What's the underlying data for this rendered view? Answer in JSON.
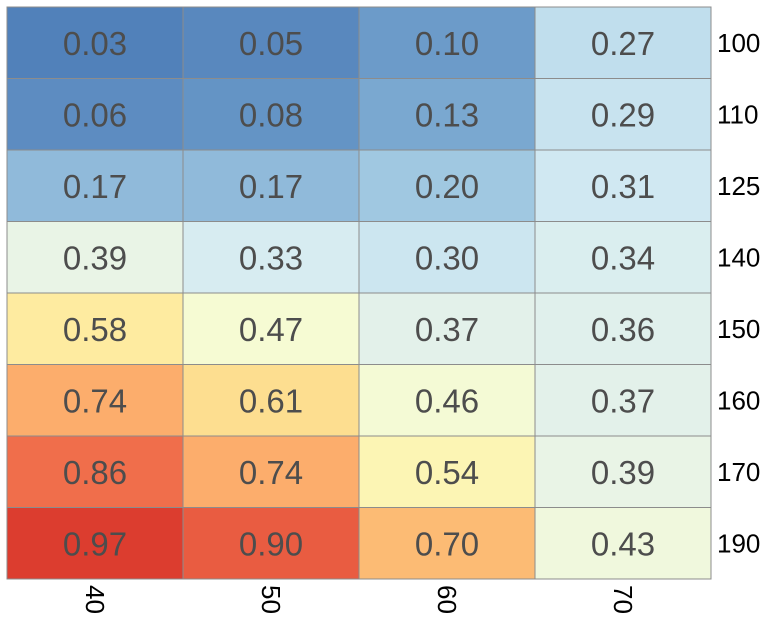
{
  "chart_data": {
    "type": "heatmap",
    "title": "",
    "xlabel": "",
    "ylabel": "",
    "grid": true,
    "x_categories": [
      "40",
      "50",
      "60",
      "70"
    ],
    "y_categories": [
      "100",
      "110",
      "125",
      "140",
      "150",
      "160",
      "170",
      "190"
    ],
    "y_axis_side": "right",
    "x_tick_rotation": "90",
    "values": [
      [
        0.03,
        0.05,
        0.1,
        0.27
      ],
      [
        0.06,
        0.08,
        0.13,
        0.29
      ],
      [
        0.17,
        0.17,
        0.2,
        0.31
      ],
      [
        0.39,
        0.33,
        0.3,
        0.34
      ],
      [
        0.58,
        0.47,
        0.37,
        0.36
      ],
      [
        0.74,
        0.61,
        0.46,
        0.37
      ],
      [
        0.86,
        0.74,
        0.54,
        0.39
      ],
      [
        0.97,
        0.9,
        0.7,
        0.43
      ]
    ],
    "value_range": [
      0,
      1
    ],
    "colormap": "RdYlBu (reversed)",
    "colors": {
      "cell_border": "#8c8c8c",
      "cell_text": "#4d4d4d",
      "tick_text": "#000000"
    }
  }
}
